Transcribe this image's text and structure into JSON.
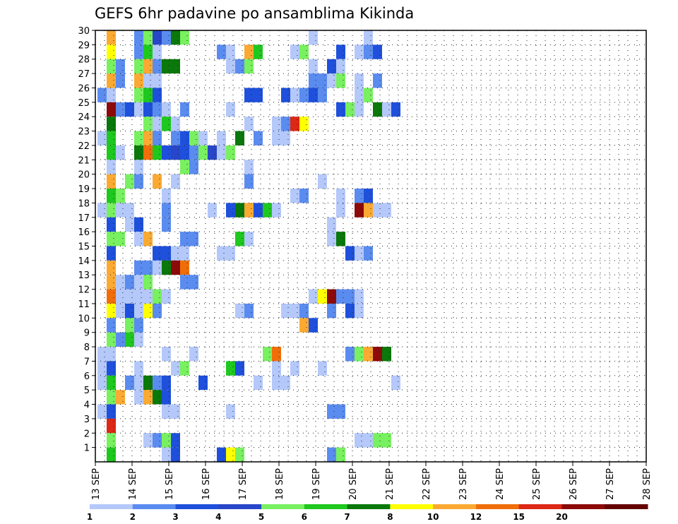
{
  "chart_data": {
    "type": "heatmap",
    "title": "GEFS 6hr padavine po ansamblima Kikinda",
    "x_tick_labels": [
      "13 SEP",
      "14 SEP",
      "15 SEP",
      "16 SEP",
      "17 SEP",
      "18 SEP",
      "19 SEP",
      "20 SEP",
      "21 SEP",
      "22 SEP",
      "23 SEP",
      "24 SEP",
      "25 SEP",
      "26 SEP",
      "27 SEP",
      "28 SEP"
    ],
    "y_tick_labels": [
      "1",
      "2",
      "3",
      "4",
      "5",
      "6",
      "7",
      "8",
      "9",
      "10",
      "11",
      "12",
      "13",
      "14",
      "15",
      "16",
      "17",
      "18",
      "19",
      "20",
      "21",
      "22",
      "23",
      "24",
      "25",
      "26",
      "27",
      "28",
      "29",
      "30"
    ],
    "xlim": [
      0,
      60
    ],
    "ylim": [
      0,
      30
    ],
    "grid": true,
    "legend_position": "bottom",
    "legend_labels": [
      "1",
      "2",
      "3",
      "4",
      "5",
      "6",
      "7",
      "8",
      "10",
      "12",
      "15",
      "20"
    ],
    "bin_colors": [
      "#b4c8fa",
      "#5a8cf0",
      "#1e50dc",
      "#2846c8",
      "#78f060",
      "#1ec81e",
      "#0a780a",
      "#ffff00",
      "#faaa32",
      "#f06e0a",
      "#dc2814",
      "#8c0a0a",
      "#640000"
    ],
    "cells": [
      [
        1,
        30,
        8
      ],
      [
        4,
        30,
        1
      ],
      [
        5,
        30,
        4
      ],
      [
        6,
        30,
        3
      ],
      [
        7,
        30,
        1
      ],
      [
        8,
        30,
        6
      ],
      [
        9,
        30,
        4
      ],
      [
        23,
        30,
        0
      ],
      [
        29,
        30,
        0
      ],
      [
        1,
        29,
        7
      ],
      [
        4,
        29,
        1
      ],
      [
        5,
        29,
        5
      ],
      [
        6,
        29,
        0
      ],
      [
        13,
        29,
        1
      ],
      [
        14,
        29,
        0
      ],
      [
        16,
        29,
        8
      ],
      [
        17,
        29,
        5
      ],
      [
        21,
        29,
        0
      ],
      [
        22,
        29,
        4
      ],
      [
        26,
        29,
        2
      ],
      [
        28,
        29,
        0
      ],
      [
        29,
        29,
        1
      ],
      [
        30,
        29,
        2
      ],
      [
        1,
        28,
        4
      ],
      [
        2,
        28,
        1
      ],
      [
        4,
        28,
        4
      ],
      [
        5,
        28,
        8
      ],
      [
        6,
        28,
        1
      ],
      [
        7,
        28,
        6
      ],
      [
        8,
        28,
        6
      ],
      [
        14,
        28,
        0
      ],
      [
        15,
        28,
        1
      ],
      [
        16,
        28,
        4
      ],
      [
        23,
        28,
        0
      ],
      [
        25,
        28,
        2
      ],
      [
        26,
        28,
        0
      ],
      [
        1,
        27,
        8
      ],
      [
        2,
        27,
        1
      ],
      [
        4,
        27,
        8
      ],
      [
        5,
        27,
        0
      ],
      [
        6,
        27,
        0
      ],
      [
        23,
        27,
        1
      ],
      [
        24,
        27,
        1
      ],
      [
        25,
        27,
        0
      ],
      [
        26,
        27,
        4
      ],
      [
        28,
        27,
        0
      ],
      [
        30,
        27,
        1
      ],
      [
        0,
        26,
        1
      ],
      [
        1,
        26,
        0
      ],
      [
        4,
        26,
        4
      ],
      [
        5,
        26,
        5
      ],
      [
        6,
        26,
        2
      ],
      [
        16,
        26,
        2
      ],
      [
        17,
        26,
        2
      ],
      [
        20,
        26,
        2
      ],
      [
        21,
        26,
        0
      ],
      [
        22,
        26,
        1
      ],
      [
        23,
        26,
        2
      ],
      [
        24,
        26,
        1
      ],
      [
        28,
        26,
        0
      ],
      [
        29,
        26,
        4
      ],
      [
        1,
        25,
        11
      ],
      [
        2,
        25,
        1
      ],
      [
        3,
        25,
        2
      ],
      [
        4,
        25,
        0
      ],
      [
        5,
        25,
        2
      ],
      [
        6,
        25,
        1
      ],
      [
        7,
        25,
        0
      ],
      [
        9,
        25,
        1
      ],
      [
        14,
        25,
        0
      ],
      [
        26,
        25,
        2
      ],
      [
        27,
        25,
        4
      ],
      [
        28,
        25,
        0
      ],
      [
        30,
        25,
        6
      ],
      [
        31,
        25,
        0
      ],
      [
        32,
        25,
        2
      ],
      [
        1,
        24,
        6
      ],
      [
        5,
        24,
        4
      ],
      [
        6,
        24,
        0
      ],
      [
        7,
        24,
        5
      ],
      [
        8,
        24,
        0
      ],
      [
        16,
        24,
        0
      ],
      [
        19,
        24,
        0
      ],
      [
        20,
        24,
        1
      ],
      [
        21,
        24,
        10
      ],
      [
        22,
        24,
        7
      ],
      [
        0,
        23,
        0
      ],
      [
        1,
        23,
        5
      ],
      [
        4,
        23,
        4
      ],
      [
        5,
        23,
        8
      ],
      [
        6,
        23,
        1
      ],
      [
        8,
        23,
        1
      ],
      [
        9,
        23,
        2
      ],
      [
        10,
        23,
        4
      ],
      [
        11,
        23,
        0
      ],
      [
        13,
        23,
        0
      ],
      [
        15,
        23,
        6
      ],
      [
        17,
        23,
        1
      ],
      [
        19,
        23,
        0
      ],
      [
        20,
        23,
        0
      ],
      [
        1,
        22,
        5
      ],
      [
        2,
        22,
        0
      ],
      [
        4,
        22,
        6
      ],
      [
        5,
        22,
        9
      ],
      [
        6,
        22,
        5
      ],
      [
        7,
        22,
        2
      ],
      [
        8,
        22,
        3
      ],
      [
        9,
        22,
        2
      ],
      [
        10,
        22,
        1
      ],
      [
        11,
        22,
        4
      ],
      [
        12,
        22,
        3
      ],
      [
        13,
        22,
        0
      ],
      [
        14,
        22,
        4
      ],
      [
        1,
        21,
        0
      ],
      [
        4,
        21,
        0
      ],
      [
        9,
        21,
        4
      ],
      [
        10,
        21,
        1
      ],
      [
        16,
        21,
        0
      ],
      [
        1,
        20,
        8
      ],
      [
        3,
        20,
        4
      ],
      [
        4,
        20,
        1
      ],
      [
        6,
        20,
        8
      ],
      [
        8,
        20,
        0
      ],
      [
        16,
        20,
        1
      ],
      [
        24,
        20,
        0
      ],
      [
        1,
        19,
        5
      ],
      [
        2,
        19,
        4
      ],
      [
        7,
        19,
        0
      ],
      [
        21,
        19,
        0
      ],
      [
        22,
        19,
        1
      ],
      [
        26,
        19,
        0
      ],
      [
        28,
        19,
        1
      ],
      [
        29,
        19,
        2
      ],
      [
        0,
        18,
        0
      ],
      [
        1,
        18,
        4
      ],
      [
        2,
        18,
        0
      ],
      [
        3,
        18,
        0
      ],
      [
        7,
        18,
        1
      ],
      [
        12,
        18,
        0
      ],
      [
        14,
        18,
        2
      ],
      [
        15,
        18,
        6
      ],
      [
        16,
        18,
        8
      ],
      [
        17,
        18,
        2
      ],
      [
        18,
        18,
        5
      ],
      [
        19,
        18,
        0
      ],
      [
        26,
        18,
        0
      ],
      [
        28,
        18,
        11
      ],
      [
        29,
        18,
        8
      ],
      [
        30,
        18,
        0
      ],
      [
        31,
        18,
        0
      ],
      [
        1,
        17,
        2
      ],
      [
        3,
        17,
        0
      ],
      [
        4,
        17,
        2
      ],
      [
        7,
        17,
        1
      ],
      [
        25,
        17,
        0
      ],
      [
        1,
        16,
        4
      ],
      [
        2,
        16,
        4
      ],
      [
        4,
        16,
        0
      ],
      [
        5,
        16,
        8
      ],
      [
        9,
        16,
        1
      ],
      [
        10,
        16,
        1
      ],
      [
        15,
        16,
        5
      ],
      [
        16,
        16,
        0
      ],
      [
        25,
        16,
        0
      ],
      [
        26,
        16,
        6
      ],
      [
        1,
        15,
        2
      ],
      [
        6,
        15,
        2
      ],
      [
        7,
        15,
        2
      ],
      [
        8,
        15,
        0
      ],
      [
        9,
        15,
        0
      ],
      [
        13,
        15,
        0
      ],
      [
        14,
        15,
        0
      ],
      [
        27,
        15,
        2
      ],
      [
        28,
        15,
        0
      ],
      [
        29,
        15,
        1
      ],
      [
        1,
        14,
        8
      ],
      [
        4,
        14,
        1
      ],
      [
        5,
        14,
        1
      ],
      [
        6,
        14,
        0
      ],
      [
        7,
        14,
        6
      ],
      [
        8,
        14,
        11
      ],
      [
        9,
        14,
        9
      ],
      [
        1,
        13,
        8
      ],
      [
        2,
        13,
        0
      ],
      [
        3,
        13,
        1
      ],
      [
        4,
        13,
        0
      ],
      [
        5,
        13,
        4
      ],
      [
        9,
        13,
        1
      ],
      [
        10,
        13,
        1
      ],
      [
        1,
        12,
        9
      ],
      [
        2,
        12,
        0
      ],
      [
        3,
        12,
        0
      ],
      [
        4,
        12,
        0
      ],
      [
        5,
        12,
        0
      ],
      [
        6,
        12,
        4
      ],
      [
        7,
        12,
        0
      ],
      [
        23,
        12,
        0
      ],
      [
        24,
        12,
        7
      ],
      [
        25,
        12,
        11
      ],
      [
        26,
        12,
        1
      ],
      [
        27,
        12,
        1
      ],
      [
        28,
        12,
        0
      ],
      [
        1,
        11,
        7
      ],
      [
        2,
        11,
        0
      ],
      [
        3,
        11,
        2
      ],
      [
        4,
        11,
        0
      ],
      [
        5,
        11,
        7
      ],
      [
        6,
        11,
        1
      ],
      [
        15,
        11,
        0
      ],
      [
        16,
        11,
        1
      ],
      [
        20,
        11,
        0
      ],
      [
        21,
        11,
        0
      ],
      [
        22,
        11,
        1
      ],
      [
        25,
        11,
        1
      ],
      [
        27,
        11,
        2
      ],
      [
        28,
        11,
        0
      ],
      [
        1,
        10,
        1
      ],
      [
        3,
        10,
        4
      ],
      [
        4,
        10,
        1
      ],
      [
        22,
        10,
        8
      ],
      [
        23,
        10,
        2
      ],
      [
        1,
        9,
        4
      ],
      [
        2,
        9,
        1
      ],
      [
        3,
        9,
        5
      ],
      [
        4,
        9,
        0
      ],
      [
        0,
        8,
        0
      ],
      [
        1,
        8,
        0
      ],
      [
        7,
        8,
        0
      ],
      [
        10,
        8,
        0
      ],
      [
        18,
        8,
        4
      ],
      [
        19,
        8,
        9
      ],
      [
        27,
        8,
        1
      ],
      [
        28,
        8,
        4
      ],
      [
        29,
        8,
        8
      ],
      [
        30,
        8,
        11
      ],
      [
        31,
        8,
        6
      ],
      [
        0,
        7,
        0
      ],
      [
        1,
        7,
        2
      ],
      [
        4,
        7,
        0
      ],
      [
        8,
        7,
        0
      ],
      [
        9,
        7,
        4
      ],
      [
        14,
        7,
        5
      ],
      [
        15,
        7,
        2
      ],
      [
        19,
        7,
        0
      ],
      [
        21,
        7,
        0
      ],
      [
        24,
        7,
        0
      ],
      [
        0,
        6,
        0
      ],
      [
        1,
        6,
        5
      ],
      [
        3,
        6,
        1
      ],
      [
        4,
        6,
        0
      ],
      [
        5,
        6,
        6
      ],
      [
        6,
        6,
        1
      ],
      [
        7,
        6,
        2
      ],
      [
        11,
        6,
        2
      ],
      [
        17,
        6,
        0
      ],
      [
        19,
        6,
        0
      ],
      [
        20,
        6,
        0
      ],
      [
        32,
        6,
        0
      ],
      [
        1,
        5,
        4
      ],
      [
        2,
        5,
        8
      ],
      [
        4,
        5,
        0
      ],
      [
        5,
        5,
        8
      ],
      [
        6,
        5,
        6
      ],
      [
        7,
        5,
        2
      ],
      [
        0,
        4,
        0
      ],
      [
        1,
        4,
        2
      ],
      [
        7,
        4,
        0
      ],
      [
        8,
        4,
        0
      ],
      [
        14,
        4,
        0
      ],
      [
        25,
        4,
        1
      ],
      [
        26,
        4,
        1
      ],
      [
        1,
        3,
        10
      ],
      [
        1,
        2,
        4
      ],
      [
        5,
        2,
        0
      ],
      [
        6,
        2,
        1
      ],
      [
        7,
        2,
        4
      ],
      [
        8,
        2,
        2
      ],
      [
        28,
        2,
        0
      ],
      [
        29,
        2,
        0
      ],
      [
        30,
        2,
        4
      ],
      [
        31,
        2,
        4
      ],
      [
        1,
        1,
        5
      ],
      [
        7,
        1,
        0
      ],
      [
        8,
        1,
        2
      ],
      [
        13,
        1,
        2
      ],
      [
        14,
        1,
        7
      ],
      [
        15,
        1,
        4
      ],
      [
        25,
        1,
        1
      ],
      [
        26,
        1,
        4
      ]
    ]
  }
}
